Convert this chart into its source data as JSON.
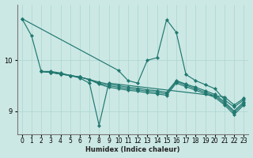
{
  "xlabel": "Humidex (Indice chaleur)",
  "background_color": "#cce8e4",
  "grid_color": "#b0d8d4",
  "line_color": "#207870",
  "xlim": [
    -0.5,
    23.5
  ],
  "ylim": [
    8.55,
    11.1
  ],
  "yticks": [
    9,
    10
  ],
  "xticks": [
    0,
    1,
    2,
    3,
    4,
    5,
    6,
    7,
    8,
    9,
    10,
    11,
    12,
    13,
    14,
    15,
    16,
    17,
    18,
    19,
    20,
    21,
    22,
    23
  ],
  "series": [
    {
      "x": [
        0,
        1,
        2,
        3,
        4,
        5,
        6,
        7,
        8,
        9,
        21,
        22,
        23
      ],
      "y": [
        10.82,
        10.48,
        9.78,
        9.78,
        9.75,
        9.7,
        9.65,
        9.55,
        8.72,
        9.55,
        9.28,
        9.12,
        9.25
      ]
    },
    {
      "x": [
        2,
        3,
        4,
        5,
        6,
        7,
        8,
        9,
        10,
        11,
        12,
        13,
        14,
        15,
        16,
        17,
        18,
        19,
        20,
        21,
        22,
        23
      ],
      "y": [
        9.78,
        9.76,
        9.73,
        9.7,
        9.67,
        9.62,
        9.57,
        9.53,
        9.5,
        9.47,
        9.45,
        9.42,
        9.4,
        9.37,
        9.6,
        9.53,
        9.47,
        9.4,
        9.33,
        9.18,
        9.0,
        9.18
      ]
    },
    {
      "x": [
        2,
        3,
        4,
        5,
        6,
        7,
        8,
        9,
        10,
        11,
        12,
        13,
        14,
        15,
        16,
        17,
        18,
        19,
        20,
        21,
        22,
        23
      ],
      "y": [
        9.78,
        9.76,
        9.73,
        9.7,
        9.67,
        9.62,
        9.55,
        9.5,
        9.47,
        9.44,
        9.42,
        9.39,
        9.37,
        9.34,
        9.58,
        9.51,
        9.44,
        9.37,
        9.3,
        9.15,
        8.97,
        9.15
      ]
    },
    {
      "x": [
        2,
        3,
        4,
        5,
        6,
        7,
        8,
        9,
        10,
        11,
        12,
        13,
        14,
        15,
        16,
        17,
        18,
        19,
        20,
        21,
        22,
        23
      ],
      "y": [
        9.78,
        9.76,
        9.73,
        9.7,
        9.67,
        9.62,
        9.53,
        9.47,
        9.44,
        9.41,
        9.39,
        9.36,
        9.34,
        9.31,
        9.55,
        9.48,
        9.41,
        9.34,
        9.27,
        9.12,
        8.93,
        9.12
      ]
    },
    {
      "x": [
        0,
        10,
        11,
        12,
        13,
        14,
        15,
        16,
        17,
        18,
        19,
        20,
        21,
        22,
        23
      ],
      "y": [
        10.82,
        9.8,
        9.6,
        9.55,
        10.0,
        10.05,
        10.8,
        10.55,
        9.72,
        9.6,
        9.52,
        9.44,
        9.22,
        9.08,
        9.22
      ]
    }
  ]
}
